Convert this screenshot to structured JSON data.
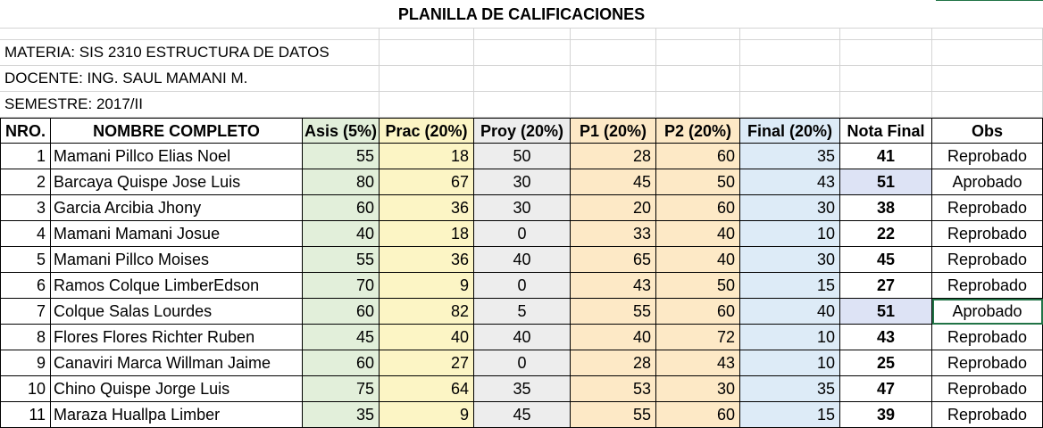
{
  "sheet": {
    "title": "PLANILLA DE CALIFICACIONES",
    "materia": "MATERIA: SIS 2310 ESTRUCTURA DE DATOS",
    "docente": "DOCENTE: ING. SAUL MAMANI M.",
    "semestre": "SEMESTRE: 2017/II"
  },
  "columns": [
    "NRO.",
    "NOMBRE COMPLETO",
    "Asis (5%)",
    "Prac (20%)",
    "Proy (20%)",
    "P1 (20%)",
    "P2 (20%)",
    "Final (20%)",
    "Nota Final",
    "Obs"
  ],
  "rows": [
    {
      "nro": "1",
      "nombre": "Mamani Pillco Elias Noel",
      "asis": "55",
      "prac": "18",
      "proy": "50",
      "p1": "28",
      "p2": "60",
      "final": "35",
      "nota": "41",
      "obs": "Reprobado"
    },
    {
      "nro": "2",
      "nombre": "Barcaya Quispe Jose Luis",
      "asis": "80",
      "prac": "67",
      "proy": "30",
      "p1": "45",
      "p2": "50",
      "final": "43",
      "nota": "51",
      "obs": "Aprobado"
    },
    {
      "nro": "3",
      "nombre": "Garcia Arcibia Jhony",
      "asis": "60",
      "prac": "36",
      "proy": "30",
      "p1": "20",
      "p2": "60",
      "final": "30",
      "nota": "38",
      "obs": "Reprobado"
    },
    {
      "nro": "4",
      "nombre": "Mamani Mamani Josue",
      "asis": "40",
      "prac": "18",
      "proy": "0",
      "p1": "33",
      "p2": "40",
      "final": "10",
      "nota": "22",
      "obs": "Reprobado"
    },
    {
      "nro": "5",
      "nombre": "Mamani Pillco Moises",
      "asis": "55",
      "prac": "36",
      "proy": "40",
      "p1": "65",
      "p2": "40",
      "final": "30",
      "nota": "45",
      "obs": "Reprobado"
    },
    {
      "nro": "6",
      "nombre": "Ramos Colque LimberEdson",
      "asis": "70",
      "prac": "9",
      "proy": "0",
      "p1": "43",
      "p2": "50",
      "final": "15",
      "nota": "27",
      "obs": "Reprobado"
    },
    {
      "nro": "7",
      "nombre": "Colque Salas Lourdes",
      "asis": "60",
      "prac": "82",
      "proy": "5",
      "p1": "55",
      "p2": "60",
      "final": "40",
      "nota": "51",
      "obs": "Aprobado"
    },
    {
      "nro": "8",
      "nombre": "Flores Flores Richter Ruben",
      "asis": "45",
      "prac": "40",
      "proy": "40",
      "p1": "40",
      "p2": "72",
      "final": "10",
      "nota": "43",
      "obs": "Reprobado"
    },
    {
      "nro": "9",
      "nombre": "Canaviri Marca Willman Jaime",
      "asis": "60",
      "prac": "27",
      "proy": "0",
      "p1": "28",
      "p2": "43",
      "final": "10",
      "nota": "25",
      "obs": "Reprobado"
    },
    {
      "nro": "10",
      "nombre": "Chino Quispe Jorge Luis",
      "asis": "75",
      "prac": "64",
      "proy": "35",
      "p1": "53",
      "p2": "30",
      "final": "35",
      "nota": "47",
      "obs": "Reprobado"
    },
    {
      "nro": "11",
      "nombre": "Maraza Huallpa Limber",
      "asis": "35",
      "prac": "9",
      "proy": "45",
      "p1": "55",
      "p2": "60",
      "final": "15",
      "nota": "39",
      "obs": "Reprobado"
    }
  ],
  "colors": {
    "asis": "#e2efda",
    "prac": "#fcf5c5",
    "proy": "#ededed",
    "p1": "#fde9c6",
    "p2": "#fde9c6",
    "final": "#ddebf7",
    "aprobado_highlight": "#dde3f5",
    "selection": "#217346"
  }
}
